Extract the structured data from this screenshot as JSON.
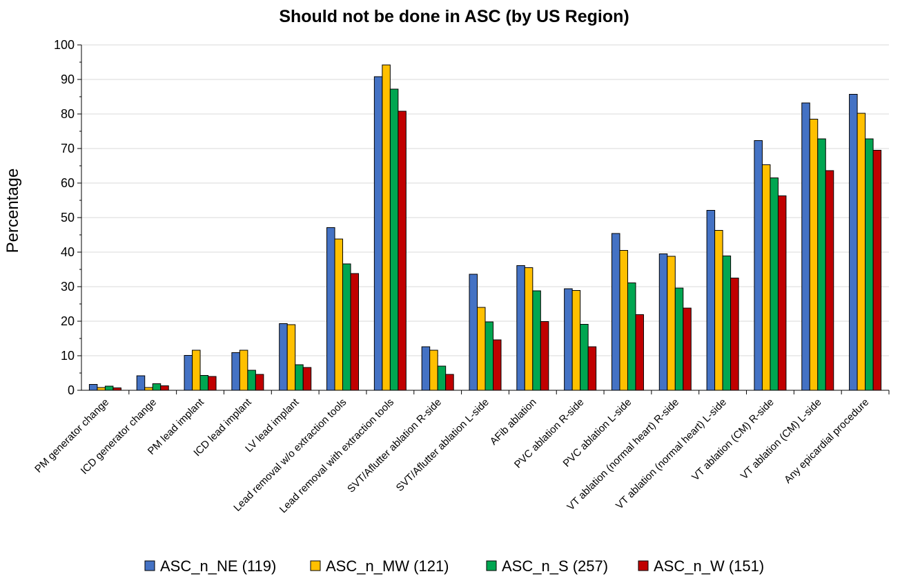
{
  "chart_data": {
    "type": "bar",
    "title": "Should not be done in ASC (by US Region)",
    "xlabel": "",
    "ylabel": "Percentage",
    "ylim": [
      0,
      100
    ],
    "yticks": [
      0,
      10,
      20,
      30,
      40,
      50,
      60,
      70,
      80,
      90,
      100
    ],
    "grid": true,
    "legend_position": "bottom",
    "categories": [
      "PM generator change",
      "ICD generator change",
      "PM lead implant",
      "ICD lead implant",
      "LV lead implant",
      "Lead removal w/o extraction tools",
      "Lead removal with extraction tools",
      "SVT/Aflutter ablation R-side",
      "SVT/Aflutter ablation L-side",
      "AFib ablation",
      "PVC ablation R-side",
      "PVC ablation L-side",
      "VT ablation (normal heart) R-side",
      "VT ablation (normal heart) L-side",
      "VT ablation (CM) R-side",
      "VT ablation (CM) L-side",
      "Any epicardial procedure"
    ],
    "series": [
      {
        "name": "ASC_n_NE (119)",
        "color": "#4472C4",
        "values": [
          1.7,
          4.2,
          10.1,
          10.9,
          19.3,
          47.1,
          90.8,
          12.6,
          33.6,
          36.1,
          29.4,
          45.4,
          39.5,
          52.1,
          72.3,
          83.2,
          85.7
        ]
      },
      {
        "name": "ASC_n_MW (121)",
        "color": "#FFC000",
        "values": [
          0.8,
          0.8,
          11.6,
          11.6,
          19.0,
          43.8,
          94.2,
          11.6,
          24.0,
          35.5,
          28.9,
          40.5,
          38.8,
          46.3,
          65.3,
          78.5,
          80.2
        ]
      },
      {
        "name": "ASC_n_S (257)",
        "color": "#00A651",
        "values": [
          1.2,
          1.9,
          4.3,
          5.8,
          7.4,
          36.6,
          87.2,
          7.0,
          19.8,
          28.8,
          19.1,
          31.1,
          29.6,
          38.9,
          61.5,
          72.8,
          72.8
        ]
      },
      {
        "name": "ASC_n_W (151)",
        "color": "#C00000",
        "values": [
          0.7,
          1.3,
          4.0,
          4.6,
          6.6,
          33.8,
          80.8,
          4.6,
          14.6,
          19.9,
          12.6,
          21.9,
          23.8,
          32.5,
          56.3,
          63.6,
          69.5
        ]
      }
    ]
  }
}
